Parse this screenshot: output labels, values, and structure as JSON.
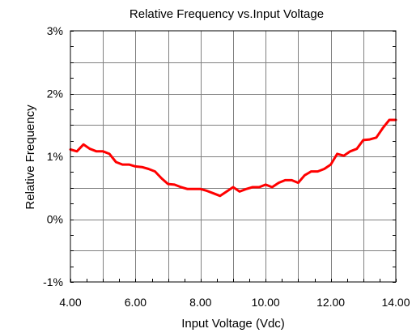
{
  "chart_data": {
    "type": "line",
    "title": "Relative Frequency vs.Input Voltage",
    "xlabel": "Input Voltage (Vdc)",
    "ylabel": "Relative Frequency",
    "xlim": [
      4.0,
      14.0
    ],
    "ylim": [
      -1,
      3
    ],
    "x_ticks": [
      {
        "value": 4.0,
        "label": "4.00"
      },
      {
        "value": 6.0,
        "label": "6.00"
      },
      {
        "value": 8.0,
        "label": "8.00"
      },
      {
        "value": 10.0,
        "label": "10.00"
      },
      {
        "value": 12.0,
        "label": "12.00"
      },
      {
        "value": 14.0,
        "label": "14.00"
      }
    ],
    "y_ticks": [
      {
        "value": -1,
        "label": "-1%"
      },
      {
        "value": 0,
        "label": "0%"
      },
      {
        "value": 1,
        "label": "1%"
      },
      {
        "value": 2,
        "label": "2%"
      },
      {
        "value": 3,
        "label": "3%"
      }
    ],
    "x_minor_step": 1.0,
    "y_minor_step": 0.5,
    "grid": true,
    "line_color": "#ff0000",
    "grid_color": "#808080",
    "series": [
      {
        "points": [
          [
            4.0,
            1.11
          ],
          [
            4.2,
            1.08
          ],
          [
            4.4,
            1.19
          ],
          [
            4.6,
            1.12
          ],
          [
            4.8,
            1.08
          ],
          [
            5.0,
            1.08
          ],
          [
            5.2,
            1.04
          ],
          [
            5.4,
            0.91
          ],
          [
            5.6,
            0.87
          ],
          [
            5.8,
            0.87
          ],
          [
            6.0,
            0.84
          ],
          [
            6.2,
            0.83
          ],
          [
            6.4,
            0.8
          ],
          [
            6.6,
            0.76
          ],
          [
            6.8,
            0.65
          ],
          [
            7.0,
            0.56
          ],
          [
            7.2,
            0.55
          ],
          [
            7.4,
            0.51
          ],
          [
            7.6,
            0.48
          ],
          [
            7.8,
            0.48
          ],
          [
            8.0,
            0.48
          ],
          [
            8.2,
            0.45
          ],
          [
            8.4,
            0.41
          ],
          [
            8.6,
            0.37
          ],
          [
            8.8,
            0.44
          ],
          [
            9.0,
            0.51
          ],
          [
            9.2,
            0.44
          ],
          [
            9.4,
            0.48
          ],
          [
            9.6,
            0.51
          ],
          [
            9.8,
            0.51
          ],
          [
            10.0,
            0.55
          ],
          [
            10.2,
            0.51
          ],
          [
            10.4,
            0.58
          ],
          [
            10.6,
            0.62
          ],
          [
            10.8,
            0.62
          ],
          [
            11.0,
            0.58
          ],
          [
            11.2,
            0.7
          ],
          [
            11.4,
            0.76
          ],
          [
            11.6,
            0.76
          ],
          [
            11.8,
            0.8
          ],
          [
            12.0,
            0.87
          ],
          [
            12.2,
            1.04
          ],
          [
            12.4,
            1.01
          ],
          [
            12.6,
            1.08
          ],
          [
            12.8,
            1.12
          ],
          [
            13.0,
            1.26
          ],
          [
            13.2,
            1.27
          ],
          [
            13.4,
            1.3
          ],
          [
            13.6,
            1.45
          ],
          [
            13.8,
            1.58
          ],
          [
            14.0,
            1.58
          ]
        ]
      }
    ]
  }
}
